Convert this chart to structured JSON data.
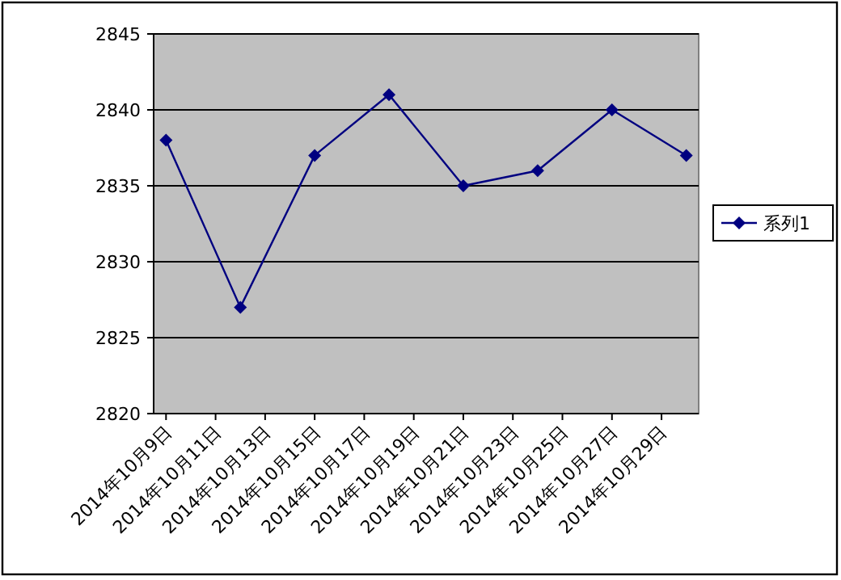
{
  "chart_data": {
    "type": "line",
    "x": [
      "2014-10-09",
      "2014-10-12",
      "2014-10-15",
      "2014-10-18",
      "2014-10-21",
      "2014-10-24",
      "2014-10-27",
      "2014-10-30"
    ],
    "series": [
      {
        "name": "系列1",
        "color": "#000080",
        "values": [
          2838,
          2827,
          2837,
          2841,
          2835,
          2836,
          2840,
          2837
        ]
      }
    ],
    "xlim": [
      "2014-10-08T12:00",
      "2014-10-30T12:00"
    ],
    "xticks": [
      {
        "value": "2014-10-09",
        "label": "2014年10月9日"
      },
      {
        "value": "2014-10-11",
        "label": "2014年10月11日"
      },
      {
        "value": "2014-10-13",
        "label": "2014年10月13日"
      },
      {
        "value": "2014-10-15",
        "label": "2014年10月15日"
      },
      {
        "value": "2014-10-17",
        "label": "2014年10月17日"
      },
      {
        "value": "2014-10-19",
        "label": "2014年10月19日"
      },
      {
        "value": "2014-10-21",
        "label": "2014年10月21日"
      },
      {
        "value": "2014-10-23",
        "label": "2014年10月23日"
      },
      {
        "value": "2014-10-25",
        "label": "2014年10月25日"
      },
      {
        "value": "2014-10-27",
        "label": "2014年10月27日"
      },
      {
        "value": "2014-10-29",
        "label": "2014年10月29日"
      }
    ],
    "ylim": [
      2820,
      2845
    ],
    "yticks": [
      2820,
      2825,
      2830,
      2835,
      2840,
      2845
    ],
    "grid": "y",
    "legend": "right",
    "marker": "diamond",
    "line_style": "solid"
  }
}
